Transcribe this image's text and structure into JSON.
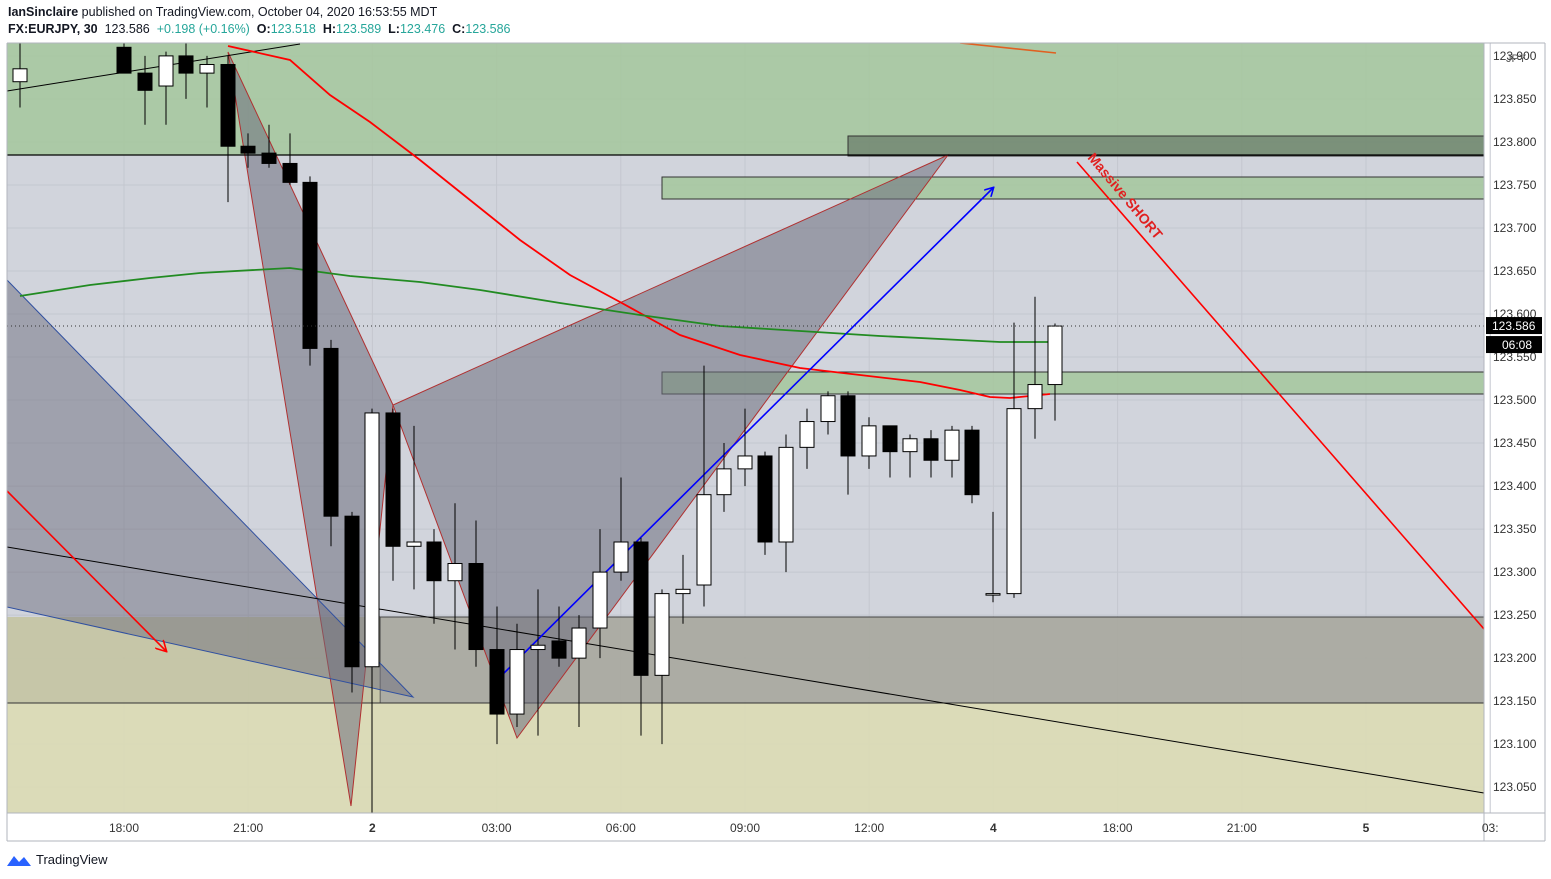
{
  "header": {
    "author": "IanSinclaire",
    "published_text": " published on TradingView.com, October 04, 2020 16:53:55 MDT",
    "symbol": "FX:EURJPY, 30",
    "last": "123.586",
    "change": "+0.198 (+0.16%)",
    "o_label": "O:",
    "o_value": "123.518",
    "h_label": "H:",
    "h_value": "123.589",
    "l_label": "L:",
    "l_value": "123.476",
    "c_label": "C:",
    "c_value": "123.586"
  },
  "footer": {
    "brand": "TradingView"
  },
  "colors": {
    "background": "#ffffff",
    "pane": "#d1d4dc",
    "green_zone": "#a5c79c",
    "yellow_zone": "#dcdcb4",
    "dark_zone": "#a0a0aa",
    "triangle_fill": "#787886",
    "ma_red": "#ff0000",
    "ma_green": "#228b22",
    "arrow_blue": "#0000ff",
    "bull": "#ffffff",
    "bear": "#000000",
    "price_tag": "#000000"
  },
  "chart_data": {
    "type": "candlestick",
    "symbol": "FX:EURJPY",
    "interval": "30",
    "currency": "JPY",
    "ylim": [
      123.02,
      123.915
    ],
    "y_ticks": [
      "123.900",
      "123.850",
      "123.800",
      "123.750",
      "123.700",
      "123.650",
      "123.600",
      "123.550",
      "123.500",
      "123.450",
      "123.400",
      "123.350",
      "123.300",
      "123.250",
      "123.200",
      "123.150",
      "123.100",
      "123.050"
    ],
    "x_ticks": [
      "18:00",
      "21:00",
      "2",
      "03:00",
      "06:00",
      "09:00",
      "12:00",
      "4",
      "18:00",
      "21:00",
      "5",
      "03:"
    ],
    "last_price": "123.586",
    "countdown": "06:08",
    "annotation": "Massive SHORT",
    "candles": [
      {
        "o": 123.87,
        "h": 123.93,
        "l": 123.84,
        "c": 123.885
      },
      {
        "o": 123.91,
        "h": 123.93,
        "l": 123.88,
        "c": 123.88
      },
      {
        "o": 123.88,
        "h": 123.9,
        "l": 123.82,
        "c": 123.86
      },
      {
        "o": 123.865,
        "h": 123.905,
        "l": 123.82,
        "c": 123.9
      },
      {
        "o": 123.9,
        "h": 123.93,
        "l": 123.85,
        "c": 123.88
      },
      {
        "o": 123.88,
        "h": 123.9,
        "l": 123.84,
        "c": 123.89
      },
      {
        "o": 123.89,
        "h": 123.9,
        "l": 123.73,
        "c": 123.795
      },
      {
        "o": 123.795,
        "h": 123.81,
        "l": 123.77,
        "c": 123.787
      },
      {
        "o": 123.787,
        "h": 123.82,
        "l": 123.77,
        "c": 123.775
      },
      {
        "o": 123.775,
        "h": 123.81,
        "l": 123.75,
        "c": 123.753
      },
      {
        "o": 123.753,
        "h": 123.76,
        "l": 123.54,
        "c": 123.56
      },
      {
        "o": 123.56,
        "h": 123.57,
        "l": 123.33,
        "c": 123.365
      },
      {
        "o": 123.365,
        "h": 123.37,
        "l": 123.16,
        "c": 123.19
      },
      {
        "o": 123.19,
        "h": 123.49,
        "l": 123.02,
        "c": 123.485
      },
      {
        "o": 123.485,
        "h": 123.49,
        "l": 123.29,
        "c": 123.33
      },
      {
        "o": 123.33,
        "h": 123.47,
        "l": 123.28,
        "c": 123.335
      },
      {
        "o": 123.335,
        "h": 123.35,
        "l": 123.24,
        "c": 123.29
      },
      {
        "o": 123.29,
        "h": 123.38,
        "l": 123.21,
        "c": 123.31
      },
      {
        "o": 123.31,
        "h": 123.36,
        "l": 123.19,
        "c": 123.21
      },
      {
        "o": 123.21,
        "h": 123.26,
        "l": 123.1,
        "c": 123.135
      },
      {
        "o": 123.135,
        "h": 123.24,
        "l": 123.12,
        "c": 123.21
      },
      {
        "o": 123.21,
        "h": 123.28,
        "l": 123.11,
        "c": 123.215
      },
      {
        "o": 123.22,
        "h": 123.26,
        "l": 123.19,
        "c": 123.2
      },
      {
        "o": 123.2,
        "h": 123.25,
        "l": 123.12,
        "c": 123.235
      },
      {
        "o": 123.235,
        "h": 123.35,
        "l": 123.2,
        "c": 123.3
      },
      {
        "o": 123.3,
        "h": 123.41,
        "l": 123.29,
        "c": 123.335
      },
      {
        "o": 123.335,
        "h": 123.34,
        "l": 123.11,
        "c": 123.18
      },
      {
        "o": 123.18,
        "h": 123.28,
        "l": 123.1,
        "c": 123.275
      },
      {
        "o": 123.275,
        "h": 123.32,
        "l": 123.24,
        "c": 123.28
      },
      {
        "o": 123.285,
        "h": 123.54,
        "l": 123.26,
        "c": 123.39
      },
      {
        "o": 123.39,
        "h": 123.45,
        "l": 123.37,
        "c": 123.42
      },
      {
        "o": 123.42,
        "h": 123.49,
        "l": 123.4,
        "c": 123.435
      },
      {
        "o": 123.435,
        "h": 123.44,
        "l": 123.32,
        "c": 123.335
      },
      {
        "o": 123.335,
        "h": 123.46,
        "l": 123.3,
        "c": 123.445
      },
      {
        "o": 123.445,
        "h": 123.49,
        "l": 123.42,
        "c": 123.475
      },
      {
        "o": 123.475,
        "h": 123.51,
        "l": 123.46,
        "c": 123.505
      },
      {
        "o": 123.505,
        "h": 123.51,
        "l": 123.39,
        "c": 123.435
      },
      {
        "o": 123.435,
        "h": 123.48,
        "l": 123.42,
        "c": 123.47
      },
      {
        "o": 123.47,
        "h": 123.47,
        "l": 123.41,
        "c": 123.44
      },
      {
        "o": 123.44,
        "h": 123.46,
        "l": 123.41,
        "c": 123.455
      },
      {
        "o": 123.455,
        "h": 123.465,
        "l": 123.41,
        "c": 123.43
      },
      {
        "o": 123.43,
        "h": 123.47,
        "l": 123.41,
        "c": 123.465
      },
      {
        "o": 123.465,
        "h": 123.47,
        "l": 123.38,
        "c": 123.39
      },
      {
        "o": 123.275,
        "h": 123.37,
        "l": 123.265,
        "c": 123.275
      },
      {
        "o": 123.275,
        "h": 123.59,
        "l": 123.27,
        "c": 123.49
      },
      {
        "o": 123.49,
        "h": 123.62,
        "l": 123.455,
        "c": 123.518
      },
      {
        "o": 123.518,
        "h": 123.589,
        "l": 123.476,
        "c": 123.586
      }
    ]
  }
}
